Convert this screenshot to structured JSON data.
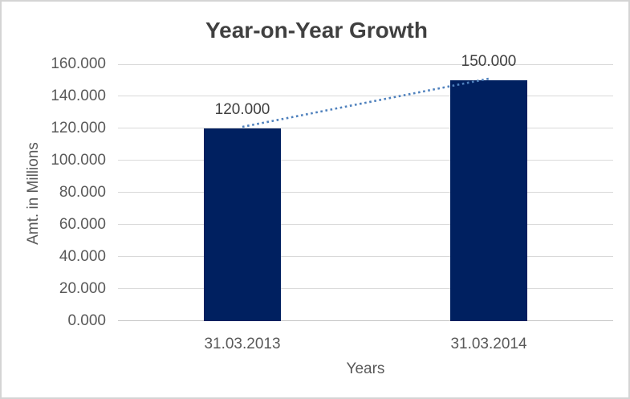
{
  "window": {
    "background": "#FFFFFF",
    "border_color": "#D4D4D4"
  },
  "chart_data": {
    "type": "bar",
    "title": "Year-on-Year Growth",
    "categories": [
      "31.03.2013",
      "31.03.2014"
    ],
    "values": [
      120,
      150
    ],
    "value_labels": [
      "120.000",
      "150.000"
    ],
    "xlabel": "Years",
    "ylabel": "Amt. in Millions",
    "ylim": [
      0,
      160
    ],
    "ytick_step": 20,
    "ytick_labels": [
      "0.000",
      "20.000",
      "40.000",
      "60.000",
      "80.000",
      "100.000",
      "120.000",
      "140.000",
      "160.000"
    ],
    "grid": true,
    "legend": "none",
    "trendline": {
      "style": "dotted",
      "connects": "bar tops",
      "color": "#4F81BD"
    },
    "colors": {
      "bar": "#002060",
      "trendline": "#4F81BD",
      "title_text": "#404040",
      "axis_text": "#595959",
      "data_label_text": "#404040",
      "gridline": "#D9D9D9",
      "axis_line": "#C4C4C4"
    }
  }
}
